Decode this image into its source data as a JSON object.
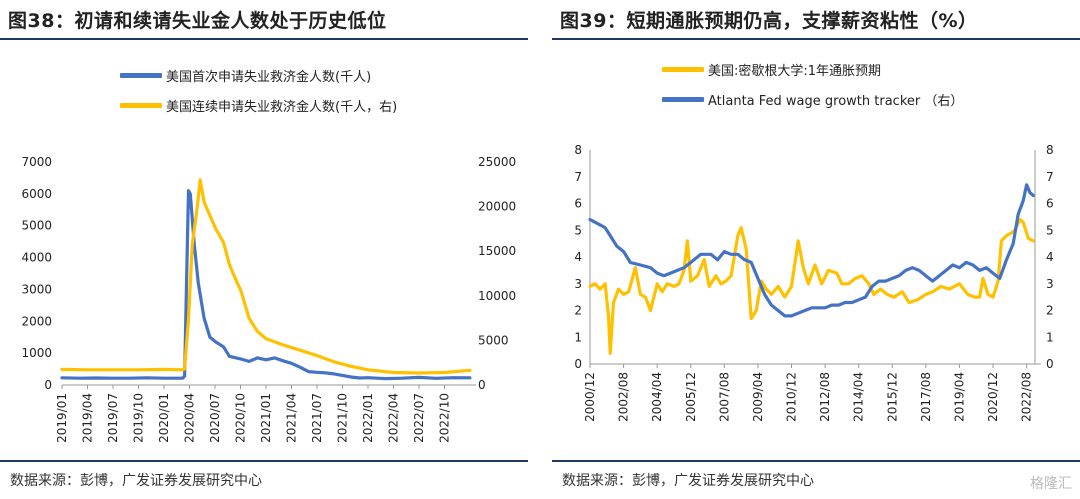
{
  "left": {
    "title": "图38：初请和续请失业金人数处于历史低位",
    "source": "数据来源：彭博，广发证券发展研究中心"
  },
  "right": {
    "title": "图39：短期通胀预期仍高，支撑薪资粘性（%）",
    "source": "数据来源：彭博，广发证券发展研究中心"
  },
  "watermark": "格隆汇",
  "colors": {
    "blue": "#4472c4",
    "yellow": "#ffc000",
    "rule": "#1f3864"
  },
  "chart_data": [
    {
      "type": "line",
      "title": "",
      "x_tick_labels": [
        "2019/01",
        "2019/04",
        "2019/07",
        "2019/10",
        "2020/01",
        "2020/04",
        "2020/07",
        "2020/10",
        "2021/01",
        "2021/04",
        "2021/07",
        "2021/10",
        "2022/01",
        "2022/04",
        "2022/07",
        "2022/10"
      ],
      "y_left": {
        "ticks": [
          "0",
          "1000",
          "2000",
          "3000",
          "4000",
          "5000",
          "6000",
          "7000"
        ],
        "range": [
          0,
          7000
        ]
      },
      "y_right": {
        "ticks": [
          "0",
          "5000",
          "10000",
          "15000",
          "20000",
          "25000"
        ],
        "range": [
          0,
          25000
        ]
      },
      "legend_position": "top",
      "grid": false,
      "series": [
        {
          "name": "美国首次申请失业救济金人数(千人)",
          "color": "#4472c4",
          "axis": "left",
          "points": [
            [
              "2019/01",
              225
            ],
            [
              "2019/03",
              215
            ],
            [
              "2019/05",
              220
            ],
            [
              "2019/07",
              215
            ],
            [
              "2019/09",
              212
            ],
            [
              "2019/11",
              225
            ],
            [
              "2020/01",
              215
            ],
            [
              "2020/03/07",
              215
            ],
            [
              "2020/03/14",
              280
            ],
            [
              "2020/03/21",
              3300
            ],
            [
              "2020/03/28",
              6100
            ],
            [
              "2020/04/04",
              6000
            ],
            [
              "2020/04/18",
              4400
            ],
            [
              "2020/05/02",
              3200
            ],
            [
              "2020/05/23",
              2100
            ],
            [
              "2020/06/13",
              1500
            ],
            [
              "2020/07/04",
              1350
            ],
            [
              "2020/08/01",
              1200
            ],
            [
              "2020/08/22",
              900
            ],
            [
              "2020/10/01",
              820
            ],
            [
              "2020/11/01",
              740
            ],
            [
              "2020/12/01",
              850
            ],
            [
              "2021/01/01",
              790
            ],
            [
              "2021/02/01",
              850
            ],
            [
              "2021/03/01",
              760
            ],
            [
              "2021/04/01",
              680
            ],
            [
              "2021/05/01",
              560
            ],
            [
              "2021/06/01",
              420
            ],
            [
              "2021/07/01",
              400
            ],
            [
              "2021/08/01",
              380
            ],
            [
              "2021/09/01",
              350
            ],
            [
              "2021/10/01",
              300
            ],
            [
              "2021/11/01",
              250
            ],
            [
              "2021/12/01",
              220
            ],
            [
              "2022/01/01",
              230
            ],
            [
              "2022/03/01",
              200
            ],
            [
              "2022/05/01",
              215
            ],
            [
              "2022/07/01",
              240
            ],
            [
              "2022/09/01",
              210
            ],
            [
              "2022/11/01",
              230
            ],
            [
              "2022/12/31",
              225
            ]
          ]
        },
        {
          "name": "美国连续申请失业救济金人数(千人，右)",
          "color": "#ffc000",
          "axis": "right",
          "points": [
            [
              "2019/01",
              1750
            ],
            [
              "2019/04",
              1700
            ],
            [
              "2019/07",
              1700
            ],
            [
              "2019/10",
              1700
            ],
            [
              "2020/01",
              1750
            ],
            [
              "2020/03/07",
              1700
            ],
            [
              "2020/03/14",
              1800
            ],
            [
              "2020/03/28",
              7400
            ],
            [
              "2020/04/11",
              15800
            ],
            [
              "2020/04/25",
              19000
            ],
            [
              "2020/05/02",
              21000
            ],
            [
              "2020/05/09",
              23000
            ],
            [
              "2020/05/23",
              20500
            ],
            [
              "2020/06/13",
              19000
            ],
            [
              "2020/07/04",
              17500
            ],
            [
              "2020/08/01",
              16000
            ],
            [
              "2020/08/22",
              13500
            ],
            [
              "2020/09/12",
              12000
            ],
            [
              "2020/10/03",
              10500
            ],
            [
              "2020/11/01",
              7500
            ],
            [
              "2020/12/01",
              6000
            ],
            [
              "2021/01/01",
              5200
            ],
            [
              "2021/03/01",
              4500
            ],
            [
              "2021/05/01",
              3900
            ],
            [
              "2021/07/01",
              3300
            ],
            [
              "2021/09/01",
              2600
            ],
            [
              "2021/11/01",
              2100
            ],
            [
              "2022/01/01",
              1700
            ],
            [
              "2022/04/01",
              1400
            ],
            [
              "2022/07/01",
              1350
            ],
            [
              "2022/10/01",
              1400
            ],
            [
              "2022/12/31",
              1650
            ]
          ]
        }
      ]
    },
    {
      "type": "line",
      "title": "",
      "x_tick_labels": [
        "2000/12",
        "2002/08",
        "2004/04",
        "2005/12",
        "2007/08",
        "2009/04",
        "2010/12",
        "2012/08",
        "2014/04",
        "2015/12",
        "2017/08",
        "2019/04",
        "2020/12",
        "2022/08"
      ],
      "y_left": {
        "ticks": [
          "0",
          "1",
          "2",
          "3",
          "4",
          "5",
          "6",
          "7",
          "8"
        ],
        "range": [
          0,
          8
        ]
      },
      "y_right": {
        "ticks": [
          "0",
          "1",
          "2",
          "3",
          "4",
          "5",
          "6",
          "7",
          "8"
        ],
        "range": [
          0,
          8
        ]
      },
      "legend_position": "top",
      "grid": false,
      "series": [
        {
          "name": "美国:密歇根大学:1年通胀预期",
          "color": "#ffc000",
          "axis": "left",
          "points": [
            [
              "2000/12",
              2.9
            ],
            [
              "2001/03",
              3.0
            ],
            [
              "2001/06",
              2.8
            ],
            [
              "2001/09",
              3.0
            ],
            [
              "2001/11",
              1.8
            ],
            [
              "2001/12",
              0.4
            ],
            [
              "2002/02",
              2.3
            ],
            [
              "2002/05",
              2.8
            ],
            [
              "2002/08",
              2.6
            ],
            [
              "2002/11",
              2.7
            ],
            [
              "2003/03",
              3.6
            ],
            [
              "2003/06",
              2.6
            ],
            [
              "2003/09",
              2.5
            ],
            [
              "2003/12",
              2.0
            ],
            [
              "2004/04",
              3.0
            ],
            [
              "2004/07",
              2.7
            ],
            [
              "2004/10",
              3.0
            ],
            [
              "2005/02",
              2.9
            ],
            [
              "2005/05",
              3.0
            ],
            [
              "2005/08",
              3.5
            ],
            [
              "2005/10",
              4.6
            ],
            [
              "2005/12",
              3.1
            ],
            [
              "2006/04",
              3.3
            ],
            [
              "2006/08",
              3.9
            ],
            [
              "2006/11",
              2.9
            ],
            [
              "2007/03",
              3.3
            ],
            [
              "2007/06",
              3.0
            ],
            [
              "2007/09",
              3.1
            ],
            [
              "2007/12",
              3.3
            ],
            [
              "2008/04",
              4.8
            ],
            [
              "2008/06",
              5.1
            ],
            [
              "2008/09",
              4.3
            ],
            [
              "2008/12",
              1.7
            ],
            [
              "2009/03",
              2.0
            ],
            [
              "2009/06",
              3.1
            ],
            [
              "2009/09",
              2.8
            ],
            [
              "2009/12",
              2.6
            ],
            [
              "2010/04",
              2.9
            ],
            [
              "2010/08",
              2.5
            ],
            [
              "2010/12",
              2.9
            ],
            [
              "2011/04",
              4.6
            ],
            [
              "2011/07",
              3.6
            ],
            [
              "2011/10",
              3.0
            ],
            [
              "2012/02",
              3.7
            ],
            [
              "2012/06",
              3.0
            ],
            [
              "2012/10",
              3.5
            ],
            [
              "2013/03",
              3.4
            ],
            [
              "2013/06",
              3.0
            ],
            [
              "2013/10",
              3.0
            ],
            [
              "2014/02",
              3.2
            ],
            [
              "2014/06",
              3.3
            ],
            [
              "2014/10",
              3.0
            ],
            [
              "2015/01",
              2.6
            ],
            [
              "2015/05",
              2.8
            ],
            [
              "2015/09",
              2.6
            ],
            [
              "2016/01",
              2.5
            ],
            [
              "2016/06",
              2.7
            ],
            [
              "2016/10",
              2.3
            ],
            [
              "2017/03",
              2.4
            ],
            [
              "2017/08",
              2.6
            ],
            [
              "2017/12",
              2.7
            ],
            [
              "2018/05",
              2.9
            ],
            [
              "2018/10",
              2.8
            ],
            [
              "2019/04",
              3.0
            ],
            [
              "2019/09",
              2.6
            ],
            [
              "2020/01",
              2.5
            ],
            [
              "2020/04",
              2.5
            ],
            [
              "2020/06",
              3.2
            ],
            [
              "2020/09",
              2.6
            ],
            [
              "2020/12",
              2.5
            ],
            [
              "2021/03",
              3.1
            ],
            [
              "2021/05",
              4.6
            ],
            [
              "2021/08",
              4.8
            ],
            [
              "2021/11",
              4.9
            ],
            [
              "2022/01",
              5.0
            ],
            [
              "2022/04",
              5.4
            ],
            [
              "2022/06",
              5.3
            ],
            [
              "2022/09",
              4.7
            ],
            [
              "2022/12",
              4.6
            ]
          ]
        },
        {
          "name": "Atlanta Fed wage growth tracker （右）",
          "color": "#4472c4",
          "axis": "right",
          "points": [
            [
              "2000/12",
              5.4
            ],
            [
              "2001/03",
              5.3
            ],
            [
              "2001/06",
              5.2
            ],
            [
              "2001/09",
              5.1
            ],
            [
              "2001/12",
              4.8
            ],
            [
              "2002/04",
              4.4
            ],
            [
              "2002/08",
              4.2
            ],
            [
              "2002/12",
              3.8
            ],
            [
              "2003/06",
              3.7
            ],
            [
              "2003/12",
              3.6
            ],
            [
              "2004/04",
              3.4
            ],
            [
              "2004/08",
              3.3
            ],
            [
              "2004/12",
              3.4
            ],
            [
              "2005/04",
              3.5
            ],
            [
              "2005/08",
              3.6
            ],
            [
              "2005/12",
              3.8
            ],
            [
              "2006/06",
              4.1
            ],
            [
              "2006/12",
              4.1
            ],
            [
              "2007/04",
              3.9
            ],
            [
              "2007/08",
              4.2
            ],
            [
              "2007/12",
              4.1
            ],
            [
              "2008/04",
              4.1
            ],
            [
              "2008/08",
              3.9
            ],
            [
              "2008/12",
              3.8
            ],
            [
              "2009/04",
              3.2
            ],
            [
              "2009/08",
              2.6
            ],
            [
              "2009/12",
              2.2
            ],
            [
              "2010/04",
              2.0
            ],
            [
              "2010/08",
              1.8
            ],
            [
              "2010/12",
              1.8
            ],
            [
              "2011/04",
              1.9
            ],
            [
              "2011/08",
              2.0
            ],
            [
              "2011/12",
              2.1
            ],
            [
              "2012/04",
              2.1
            ],
            [
              "2012/08",
              2.1
            ],
            [
              "2012/12",
              2.2
            ],
            [
              "2013/04",
              2.2
            ],
            [
              "2013/08",
              2.3
            ],
            [
              "2013/12",
              2.3
            ],
            [
              "2014/04",
              2.4
            ],
            [
              "2014/08",
              2.5
            ],
            [
              "2014/12",
              2.9
            ],
            [
              "2015/04",
              3.1
            ],
            [
              "2015/08",
              3.1
            ],
            [
              "2015/12",
              3.2
            ],
            [
              "2016/04",
              3.3
            ],
            [
              "2016/08",
              3.5
            ],
            [
              "2016/12",
              3.6
            ],
            [
              "2017/04",
              3.5
            ],
            [
              "2017/08",
              3.3
            ],
            [
              "2017/12",
              3.1
            ],
            [
              "2018/04",
              3.3
            ],
            [
              "2018/08",
              3.5
            ],
            [
              "2018/12",
              3.7
            ],
            [
              "2019/04",
              3.6
            ],
            [
              "2019/08",
              3.8
            ],
            [
              "2019/12",
              3.7
            ],
            [
              "2020/04",
              3.5
            ],
            [
              "2020/08",
              3.6
            ],
            [
              "2020/12",
              3.4
            ],
            [
              "2021/04",
              3.2
            ],
            [
              "2021/08",
              3.9
            ],
            [
              "2021/12",
              4.5
            ],
            [
              "2022/03",
              5.6
            ],
            [
              "2022/06",
              6.1
            ],
            [
              "2022/08",
              6.7
            ],
            [
              "2022/10",
              6.4
            ],
            [
              "2022/12",
              6.3
            ]
          ]
        }
      ]
    }
  ]
}
